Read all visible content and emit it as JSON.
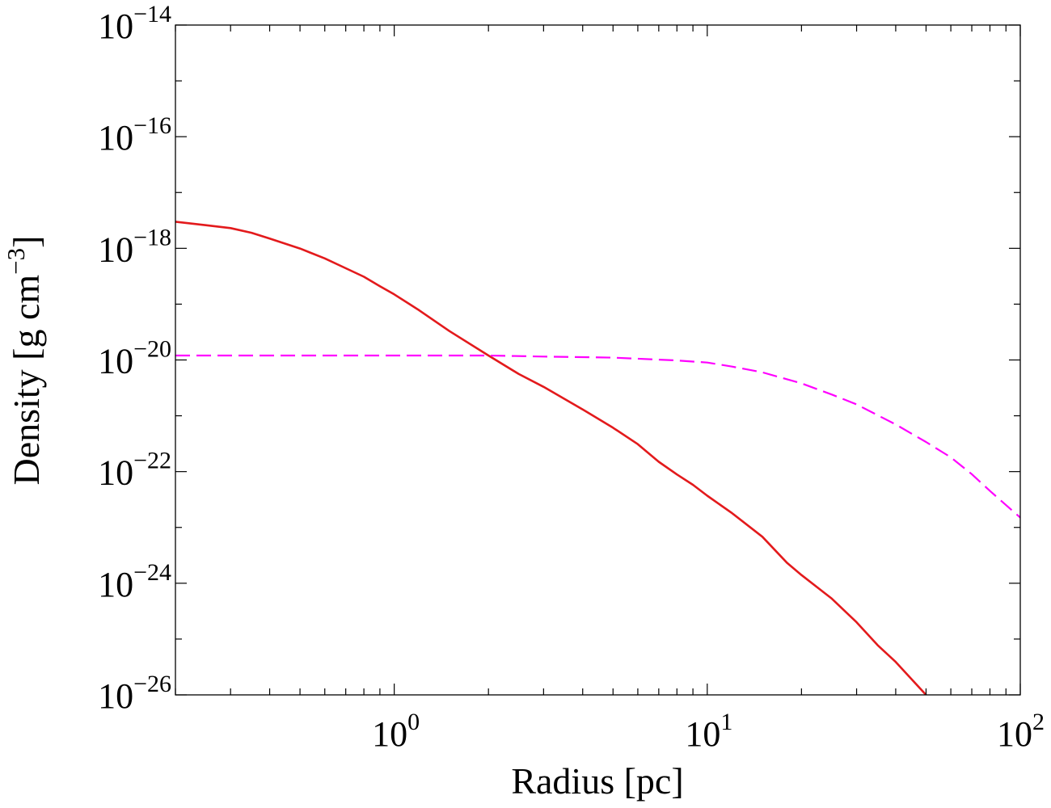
{
  "chart_data": {
    "type": "line",
    "xlabel": "Radius [pc]",
    "ylabel": "Density [g cm",
    "ylabel_exp": "−3",
    "ylabel_close": "]",
    "xscale": "log",
    "yscale": "log",
    "xlim": [
      0.2,
      100
    ],
    "ylim": [
      1e-26,
      1e-14
    ],
    "grid": false,
    "x_ticks": [
      {
        "value": 1,
        "base": "10",
        "exp": "0"
      },
      {
        "value": 10,
        "base": "10",
        "exp": "1"
      },
      {
        "value": 100,
        "base": "10",
        "exp": "2"
      }
    ],
    "y_ticks": [
      {
        "value": 1e-26,
        "base": "10",
        "exp": "−26"
      },
      {
        "value": 1e-24,
        "base": "10",
        "exp": "−24"
      },
      {
        "value": 1e-22,
        "base": "10",
        "exp": "−22"
      },
      {
        "value": 1e-20,
        "base": "10",
        "exp": "−20"
      },
      {
        "value": 1e-18,
        "base": "10",
        "exp": "−18"
      },
      {
        "value": 1e-16,
        "base": "10",
        "exp": "−16"
      },
      {
        "value": 1e-14,
        "base": "10",
        "exp": "−14"
      }
    ],
    "series": [
      {
        "color": "#e31a1c",
        "style": "solid",
        "points": [
          [
            0.2,
            3e-18
          ],
          [
            0.25,
            2.6e-18
          ],
          [
            0.3,
            2.3e-18
          ],
          [
            0.35,
            1.9e-18
          ],
          [
            0.4,
            1.5e-18
          ],
          [
            0.5,
            9.9e-19
          ],
          [
            0.6,
            6.6e-19
          ],
          [
            0.7,
            4.4e-19
          ],
          [
            0.8,
            3.1e-19
          ],
          [
            0.9,
            2.1e-19
          ],
          [
            1.0,
            1.5e-19
          ],
          [
            1.2,
            7.8e-20
          ],
          [
            1.5,
            3.3e-20
          ],
          [
            2.0,
            1.2e-20
          ],
          [
            2.5,
            5.6e-21
          ],
          [
            3.0,
            3.3e-21
          ],
          [
            4.0,
            1.3e-21
          ],
          [
            5.0,
            6.1e-22
          ],
          [
            6.0,
            3.1e-22
          ],
          [
            7.0,
            1.5e-22
          ],
          [
            8.0,
            8.9e-23
          ],
          [
            9.0,
            5.8e-23
          ],
          [
            10.0,
            3.7e-23
          ],
          [
            12.0,
            1.8e-23
          ],
          [
            15.0,
            6.8e-24
          ],
          [
            18.0,
            2.3e-24
          ],
          [
            20.0,
            1.4e-24
          ],
          [
            25.0,
            5.3e-25
          ],
          [
            30.0,
            2e-25
          ],
          [
            35.0,
            7.8e-26
          ],
          [
            40.0,
            3.9e-26
          ],
          [
            45.0,
            1.9e-26
          ],
          [
            50.0,
            1e-26
          ]
        ]
      },
      {
        "color": "#ff00ff",
        "style": "dashed",
        "points": [
          [
            0.2,
            1.2e-20
          ],
          [
            0.5,
            1.2e-20
          ],
          [
            1.0,
            1.2e-20
          ],
          [
            2.0,
            1.2e-20
          ],
          [
            3.0,
            1.15e-20
          ],
          [
            5.0,
            1.1e-20
          ],
          [
            8.0,
            9.8e-21
          ],
          [
            10.0,
            9e-21
          ],
          [
            12.0,
            7.6e-21
          ],
          [
            15.0,
            6e-21
          ],
          [
            20.0,
            3.8e-21
          ],
          [
            25.0,
            2.4e-21
          ],
          [
            30.0,
            1.6e-21
          ],
          [
            40.0,
            7e-22
          ],
          [
            50.0,
            3.4e-22
          ],
          [
            60.0,
            1.8e-22
          ],
          [
            70.0,
            9e-23
          ],
          [
            80.0,
            4.5e-23
          ],
          [
            100.0,
            1.5e-23
          ]
        ]
      }
    ]
  }
}
